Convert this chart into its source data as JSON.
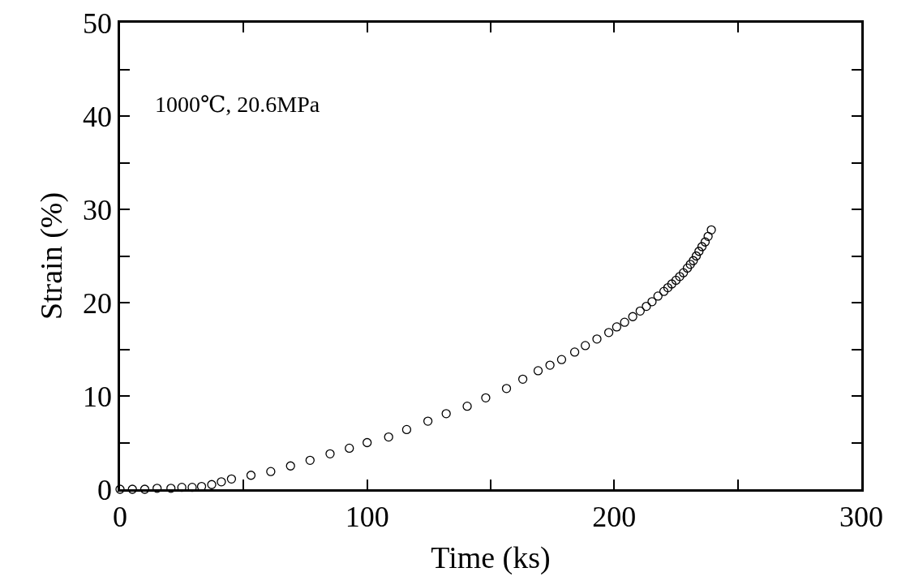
{
  "chart_data": {
    "type": "scatter",
    "xlabel": "Time (ks)",
    "ylabel": "Strain (%)",
    "annotations": [
      "1000℃, 20.6MPa"
    ],
    "marker": "circle",
    "grid": false,
    "xlim": [
      0,
      300
    ],
    "ylim": [
      0,
      50
    ],
    "xticks": [
      0,
      {
        "value": 50,
        "label": null
      },
      100,
      {
        "value": 150,
        "label": null
      },
      200,
      {
        "value": 250,
        "label": null
      },
      300
    ],
    "yticks": [
      0,
      {
        "value": 5,
        "label": null
      },
      10,
      {
        "value": 15,
        "label": null
      },
      20,
      {
        "value": 25,
        "label": null
      },
      30,
      {
        "value": 35,
        "label": null
      },
      40,
      {
        "value": 45,
        "label": null
      },
      50
    ],
    "series": [
      {
        "color": "#000000",
        "x": [
          0,
          5,
          10,
          15,
          20.6,
          25,
          29.2,
          33,
          37.1,
          41,
          45.1,
          53,
          61.0,
          69,
          76.9,
          85,
          92.8,
          100,
          108.7,
          116,
          124.6,
          132,
          140.5,
          148,
          156.4,
          163,
          169.2,
          174,
          178.7,
          184,
          188.3,
          193,
          197.8,
          201,
          204.2,
          207.5,
          210.5,
          213,
          215.3,
          217.7,
          220.1,
          221.7,
          223.3,
          225,
          226.5,
          228,
          229.6,
          230.8,
          232,
          233.2,
          234.3,
          235.5,
          236.8,
          238,
          239.3
        ],
        "values": [
          0,
          0,
          0,
          0.1,
          0.1,
          0.2,
          0.2,
          0.3,
          0.5,
          0.8,
          1.1,
          1.5,
          1.9,
          2.5,
          3.1,
          3.8,
          4.4,
          5.0,
          5.6,
          6.4,
          7.3,
          8.1,
          8.9,
          9.8,
          10.8,
          11.8,
          12.7,
          13.3,
          13.9,
          14.7,
          15.4,
          16.1,
          16.8,
          17.4,
          17.9,
          18.5,
          19.1,
          19.6,
          20.1,
          20.7,
          21.2,
          21.6,
          22.0,
          22.4,
          22.8,
          23.2,
          23.7,
          24.1,
          24.5,
          25.0,
          25.5,
          26.0,
          26.5,
          27.1,
          27.8
        ]
      }
    ]
  }
}
